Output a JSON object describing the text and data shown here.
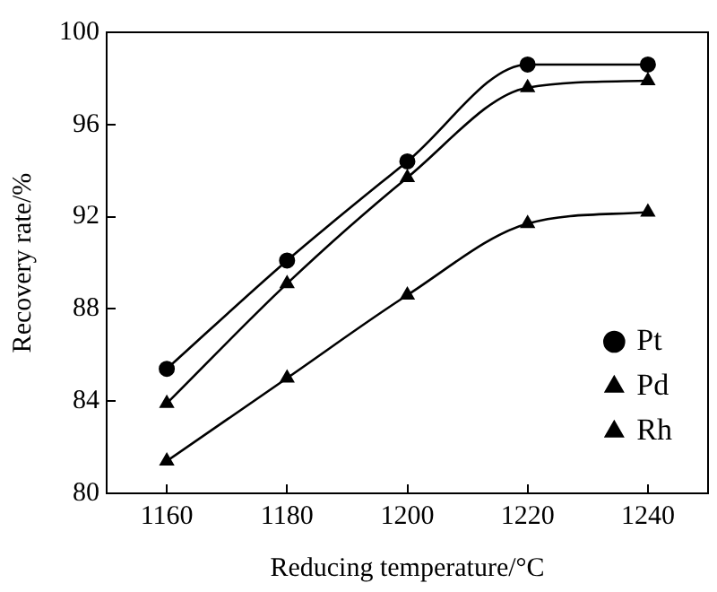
{
  "chart_data": {
    "type": "line",
    "xlabel": "Reducing temperature/°C",
    "ylabel": "Recovery rate/%",
    "x": [
      1160,
      1180,
      1200,
      1220,
      1240
    ],
    "series": [
      {
        "name": "Pt",
        "color": "#000000",
        "marker": "circle",
        "values": [
          85.4,
          90.1,
          94.4,
          98.6,
          98.6
        ]
      },
      {
        "name": "Pd",
        "color": "#000000",
        "marker": "triangle",
        "values": [
          81.4,
          85.0,
          88.6,
          91.7,
          92.2
        ]
      },
      {
        "name": "Rh",
        "color": "#000000",
        "marker": "triangle",
        "values": [
          83.9,
          89.1,
          93.7,
          97.6,
          97.9
        ]
      }
    ],
    "xlim": [
      1150,
      1250
    ],
    "xticks": [
      1160,
      1180,
      1200,
      1220,
      1240
    ],
    "ylim": [
      80,
      100
    ],
    "yticks": [
      80,
      84,
      88,
      92,
      96,
      100
    ],
    "grid": false,
    "legend": "bottom right",
    "line_style": "solid"
  }
}
